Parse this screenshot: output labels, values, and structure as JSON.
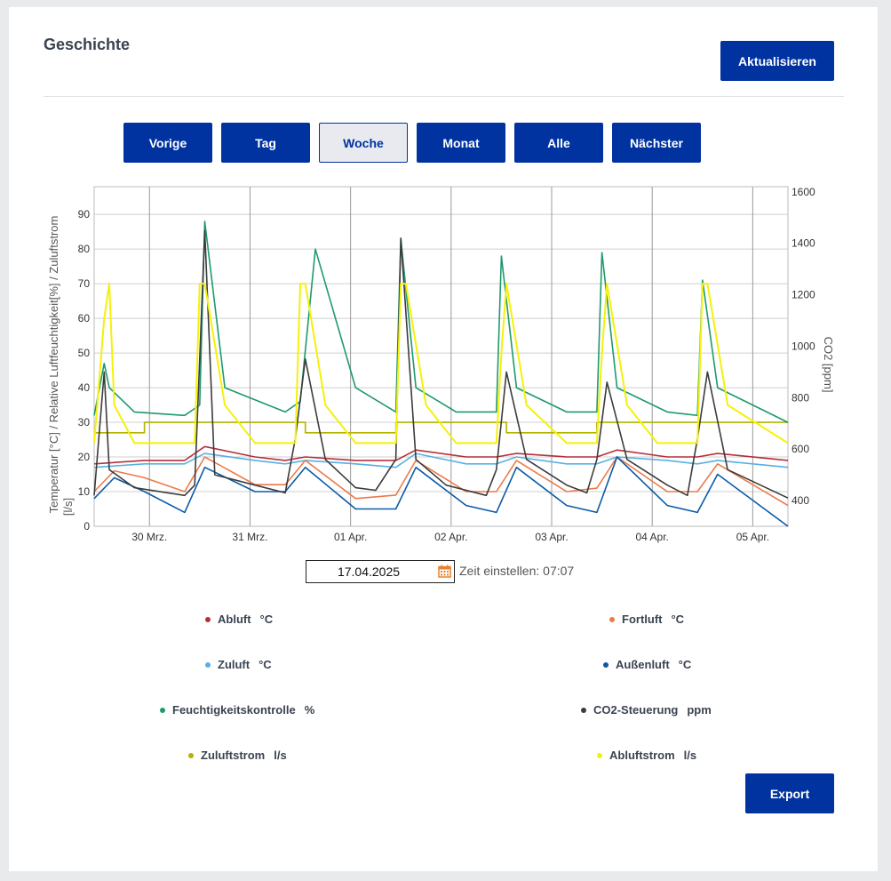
{
  "header": {
    "title": "Geschichte",
    "refresh_label": "Aktualisieren"
  },
  "nav": {
    "buttons": [
      {
        "label": "Vorige",
        "active": false
      },
      {
        "label": "Tag",
        "active": false
      },
      {
        "label": "Woche",
        "active": true
      },
      {
        "label": "Monat",
        "active": false
      },
      {
        "label": "Alle",
        "active": false
      },
      {
        "label": "Nächster",
        "active": false
      }
    ]
  },
  "date_picker": {
    "value": "17.04.2025",
    "time_label": "Zeit einstellen: 07:07"
  },
  "export_label": "Export",
  "colors": {
    "accent": "#0033a0",
    "abluft": "#b5303a",
    "fortluft": "#ec7a47",
    "zuluft": "#57b0e3",
    "aussenluft": "#0a5aa8",
    "feuchte": "#1e9a6c",
    "co2": "#3c3c3c",
    "zuluftstrom": "#b3b300",
    "abluftstrom": "#f5f10a"
  },
  "legend": [
    {
      "name": "Abluft",
      "unit": "°C",
      "color": "#b5303a",
      "icon": "circle-dot"
    },
    {
      "name": "Fortluft",
      "unit": "°C",
      "color": "#ec7a47",
      "icon": "circle-dot"
    },
    {
      "name": "Zuluft",
      "unit": "°C",
      "color": "#57b0e3",
      "icon": "circle-dot"
    },
    {
      "name": "Außenluft",
      "unit": "°C",
      "color": "#0a5aa8",
      "icon": "circle-dot"
    },
    {
      "name": "Feuchtigkeitskontrolle",
      "unit": "%",
      "color": "#1e9a6c",
      "icon": "circle-dot"
    },
    {
      "name": "CO2-Steuerung",
      "unit": "ppm",
      "color": "#3c3c3c",
      "icon": "circle-dot"
    },
    {
      "name": "Zuluftstrom",
      "unit": "l/s",
      "color": "#b3b300",
      "icon": "circle-dot"
    },
    {
      "name": "Abluftstrom",
      "unit": "l/s",
      "color": "#f5f10a",
      "icon": "circle-dot"
    }
  ],
  "chart_data": {
    "type": "line",
    "ylabel_left": "Temperatur [°C] / Relative Luftfeuchtigkeit[%] / Zuluftstrom [l/s]",
    "ylabel_right": "CO2 [ppm]",
    "ylim_left": [
      0,
      98
    ],
    "ylim_right": [
      300,
      1620
    ],
    "yticks_left": [
      "0",
      "10",
      "20",
      "30",
      "40",
      "50",
      "60",
      "70",
      "80",
      "90"
    ],
    "yticks_right": [
      "400",
      "600",
      "800",
      "1000",
      "1200",
      "1400",
      "1600"
    ],
    "xticks": [
      "30 Mrz.",
      "31 Mrz.",
      "01 Apr.",
      "02 Apr.",
      "03 Apr.",
      "04 Apr.",
      "05 Apr."
    ],
    "x_range_days": [
      0,
      6.9
    ],
    "grid": true,
    "series": [
      {
        "name": "Abluft",
        "axis": "left",
        "x": [
          0,
          0.5,
          0.9,
          1.1,
          1.6,
          1.9,
          2.1,
          2.6,
          3.0,
          3.2,
          3.7,
          4.0,
          4.2,
          4.7,
          5.0,
          5.2,
          5.7,
          6.0,
          6.2,
          6.9
        ],
        "values": [
          18,
          19,
          19,
          23,
          20,
          19,
          20,
          19,
          19,
          22,
          20,
          20,
          21,
          20,
          20,
          22,
          20,
          20,
          21,
          19
        ]
      },
      {
        "name": "Fortluft",
        "axis": "left",
        "x": [
          0,
          0.2,
          0.5,
          0.9,
          1.1,
          1.6,
          1.9,
          2.1,
          2.6,
          3.0,
          3.2,
          3.7,
          4.0,
          4.2,
          4.7,
          5.0,
          5.2,
          5.7,
          6.0,
          6.2,
          6.9
        ],
        "values": [
          10,
          16,
          14,
          10,
          20,
          12,
          12,
          19,
          8,
          9,
          19,
          10,
          10,
          19,
          10,
          11,
          20,
          10,
          10,
          18,
          6
        ]
      },
      {
        "name": "Zuluft",
        "axis": "left",
        "x": [
          0,
          0.5,
          0.9,
          1.1,
          1.6,
          1.9,
          2.1,
          2.6,
          3.0,
          3.2,
          3.7,
          4.0,
          4.2,
          4.7,
          5.0,
          5.2,
          5.7,
          6.0,
          6.2,
          6.9
        ],
        "values": [
          17,
          18,
          18,
          21,
          19,
          18,
          19,
          18,
          17,
          21,
          18,
          18,
          20,
          18,
          18,
          20,
          19,
          18,
          19,
          17
        ]
      },
      {
        "name": "Außenluft",
        "axis": "left",
        "x": [
          0,
          0.2,
          0.5,
          0.9,
          1.1,
          1.6,
          1.9,
          2.1,
          2.6,
          3.0,
          3.2,
          3.7,
          4.0,
          4.2,
          4.7,
          5.0,
          5.2,
          5.7,
          6.0,
          6.2,
          6.9
        ],
        "values": [
          8,
          14,
          10,
          4,
          17,
          10,
          10,
          17,
          5,
          5,
          17,
          6,
          4,
          17,
          6,
          4,
          20,
          6,
          4,
          15,
          0
        ]
      },
      {
        "name": "Feuchtigkeitskontrolle",
        "axis": "left",
        "x": [
          0,
          0.1,
          0.15,
          0.4,
          0.9,
          1.05,
          1.1,
          1.3,
          1.9,
          2.05,
          2.2,
          2.6,
          3.0,
          3.05,
          3.2,
          3.6,
          4.0,
          4.05,
          4.2,
          4.7,
          5.0,
          5.05,
          5.2,
          5.7,
          6.0,
          6.05,
          6.2,
          6.9
        ],
        "values": [
          32,
          47,
          40,
          33,
          32,
          35,
          88,
          40,
          33,
          36,
          80,
          40,
          33,
          83,
          40,
          33,
          33,
          78,
          40,
          33,
          33,
          79,
          40,
          33,
          32,
          71,
          40,
          30
        ]
      },
      {
        "name": "CO2-Steuerung",
        "axis": "right",
        "x": [
          0,
          0.1,
          0.15,
          0.4,
          0.9,
          1.0,
          1.1,
          1.2,
          1.6,
          1.9,
          2.0,
          2.1,
          2.3,
          2.6,
          2.8,
          3.0,
          3.05,
          3.2,
          3.5,
          3.9,
          4.0,
          4.1,
          4.3,
          4.7,
          4.9,
          5.0,
          5.1,
          5.3,
          5.7,
          5.9,
          6.0,
          6.1,
          6.3,
          6.9
        ],
        "values": [
          420,
          900,
          520,
          450,
          420,
          460,
          1450,
          500,
          460,
          430,
          640,
          950,
          560,
          450,
          440,
          560,
          1420,
          560,
          460,
          420,
          520,
          900,
          560,
          460,
          430,
          560,
          860,
          560,
          460,
          420,
          640,
          900,
          520,
          410
        ]
      },
      {
        "name": "Zuluftstrom",
        "axis": "left",
        "x": [
          0,
          0.5,
          0.5,
          2.1,
          2.1,
          3.0,
          3.0,
          4.1,
          4.1,
          5.0,
          5.0,
          6.9
        ],
        "values": [
          27,
          27,
          30,
          30,
          27,
          27,
          30,
          30,
          27,
          27,
          30,
          30
        ]
      },
      {
        "name": "Abluftstrom",
        "axis": "left",
        "x": [
          0,
          0.1,
          0.15,
          0.2,
          0.4,
          1.0,
          1.05,
          1.1,
          1.3,
          1.6,
          2.0,
          2.05,
          2.1,
          2.3,
          2.6,
          3.0,
          3.05,
          3.1,
          3.3,
          3.6,
          4.0,
          4.05,
          4.1,
          4.3,
          4.7,
          5.0,
          5.05,
          5.1,
          5.3,
          5.6,
          6.0,
          6.05,
          6.1,
          6.3,
          6.9
        ],
        "values": [
          24,
          60,
          70,
          35,
          24,
          24,
          70,
          70,
          35,
          24,
          24,
          70,
          70,
          35,
          24,
          24,
          70,
          70,
          35,
          24,
          24,
          50,
          70,
          35,
          24,
          24,
          50,
          70,
          35,
          24,
          24,
          70,
          70,
          35,
          24
        ]
      }
    ]
  }
}
